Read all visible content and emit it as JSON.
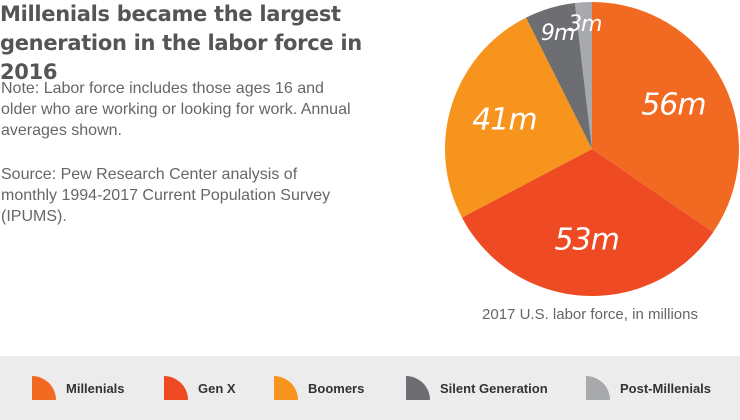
{
  "title": "Millenials became the largest generation in the labor force in 2016",
  "note": "Note: Labor force includes those ages 16 and older who are working or looking for work. Annual averages shown.",
  "source": "Source: Pew Research Center analysis of monthly 1994-2017 Current Population Survey (IPUMS).",
  "chart_data": {
    "type": "pie",
    "caption": "2017 U.S. labor force, in millions",
    "categories": [
      "Millenials",
      "Gen X",
      "Boomers",
      "Silent Generation",
      "Post-Millenials"
    ],
    "values": [
      56,
      53,
      41,
      9,
      3
    ],
    "value_labels": [
      "56m",
      "53m",
      "41m",
      "9m",
      "3m"
    ],
    "colors": [
      "#f26a21",
      "#ee4a23",
      "#f7941d",
      "#6d6e71",
      "#a7a9ac"
    ],
    "start_angle_deg": 0,
    "direction": "clockwise"
  }
}
